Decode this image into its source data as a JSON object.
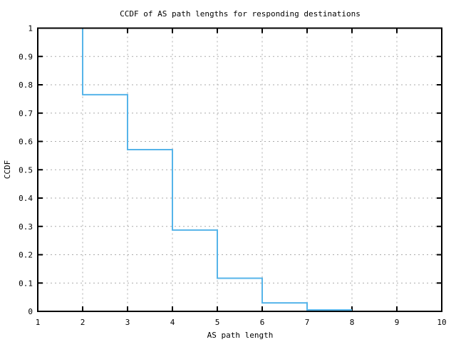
{
  "window": {
    "background": "#ffffff"
  },
  "chart_data": {
    "type": "line",
    "style": "step-ccdf",
    "title": "CCDF of AS path lengths for responding destinations",
    "xlabel": "AS path length",
    "ylabel": "CCDF",
    "xlim": [
      1,
      10
    ],
    "ylim": [
      0,
      1
    ],
    "xticks": [
      1,
      2,
      3,
      4,
      5,
      6,
      7,
      8,
      9,
      10
    ],
    "xtick_labels": [
      "1",
      "2",
      "3",
      "4",
      "5",
      "6",
      "7",
      "8",
      "9",
      "10"
    ],
    "yticks": [
      0,
      0.1,
      0.2,
      0.3,
      0.4,
      0.5,
      0.6,
      0.7,
      0.8,
      0.9,
      1
    ],
    "ytick_labels": [
      "0",
      "0.1",
      "0.2",
      "0.3",
      "0.4",
      "0.5",
      "0.6",
      "0.7",
      "0.8",
      "0.9",
      "1"
    ],
    "grid": true,
    "legend": "none",
    "colors": {
      "line": "#56b4e9",
      "grid": "#aaaaaa",
      "axis": "#000000",
      "background": "#ffffff"
    },
    "series": [
      {
        "name": "CCDF",
        "start_point": {
          "x": 2,
          "y": 1.0
        },
        "steps": [
          {
            "x_start": 2,
            "x_end": 3,
            "ccdf": 0.765
          },
          {
            "x_start": 3,
            "x_end": 4,
            "ccdf": 0.571
          },
          {
            "x_start": 4,
            "x_end": 5,
            "ccdf": 0.287
          },
          {
            "x_start": 5,
            "x_end": 6,
            "ccdf": 0.117
          },
          {
            "x_start": 6,
            "x_end": 7,
            "ccdf": 0.03
          },
          {
            "x_start": 7,
            "x_end": 8,
            "ccdf": 0.005
          }
        ]
      }
    ]
  }
}
